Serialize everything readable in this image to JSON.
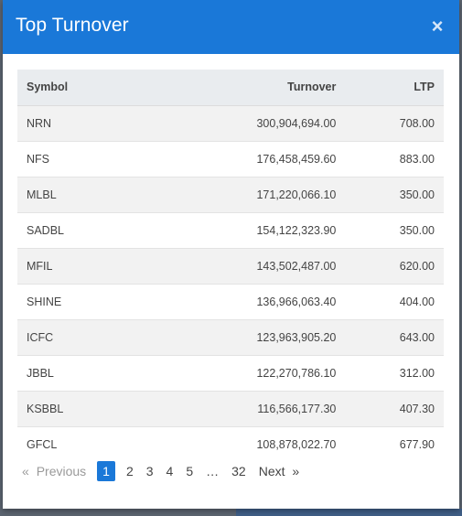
{
  "modal": {
    "title": "Top Turnover",
    "close_glyph": "×"
  },
  "table": {
    "headers": {
      "symbol": "Symbol",
      "turnover": "Turnover",
      "ltp": "LTP"
    },
    "rows": [
      {
        "symbol": "NRN",
        "turnover": "300,904,694.00",
        "ltp": "708.00"
      },
      {
        "symbol": "NFS",
        "turnover": "176,458,459.60",
        "ltp": "883.00"
      },
      {
        "symbol": "MLBL",
        "turnover": "171,220,066.10",
        "ltp": "350.00"
      },
      {
        "symbol": "SADBL",
        "turnover": "154,122,323.90",
        "ltp": "350.00"
      },
      {
        "symbol": "MFIL",
        "turnover": "143,502,487.00",
        "ltp": "620.00"
      },
      {
        "symbol": "SHINE",
        "turnover": "136,966,063.40",
        "ltp": "404.00"
      },
      {
        "symbol": "ICFC",
        "turnover": "123,963,905.20",
        "ltp": "643.00"
      },
      {
        "symbol": "JBBL",
        "turnover": "122,270,786.10",
        "ltp": "312.00"
      },
      {
        "symbol": "KSBBL",
        "turnover": "116,566,177.30",
        "ltp": "407.30"
      },
      {
        "symbol": "GFCL",
        "turnover": "108,878,022.70",
        "ltp": "677.90"
      }
    ]
  },
  "pagination": {
    "prev_arrow": "«",
    "previous": "Previous",
    "pages": [
      "1",
      "2",
      "3",
      "4",
      "5"
    ],
    "ellipsis": "…",
    "last_page": "32",
    "next": "Next",
    "next_arrow": "»",
    "active_page": "1"
  },
  "colors": {
    "header_bg": "#1a78d8",
    "active_page_bg": "#1a78d8",
    "table_head_bg": "#e9ecef",
    "row_stripe": "#f2f2f2"
  }
}
